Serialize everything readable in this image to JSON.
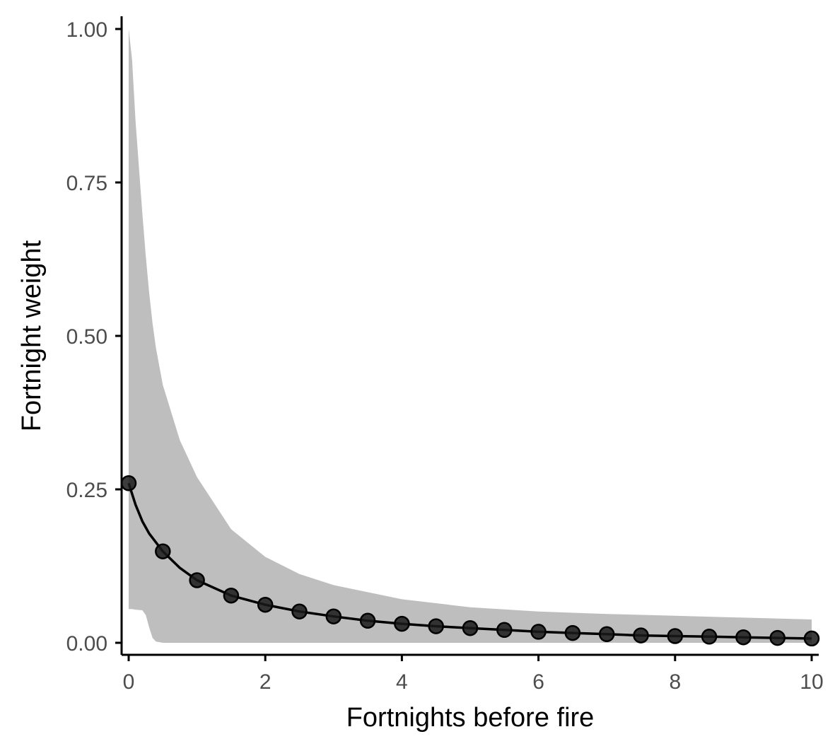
{
  "chart_data": {
    "type": "line",
    "title": "",
    "xlabel": "Fortnights before fire",
    "ylabel": "Fortnight weight",
    "xlim": [
      0,
      10
    ],
    "ylim": [
      0,
      1
    ],
    "x_ticks": [
      0,
      2,
      4,
      6,
      8,
      10
    ],
    "x_tick_labels": [
      "0",
      "2",
      "4",
      "6",
      "8",
      "10"
    ],
    "y_ticks": [
      0,
      0.25,
      0.5,
      0.75,
      1.0
    ],
    "y_tick_labels": [
      "0.00",
      "0.25",
      "0.50",
      "0.75",
      "1.00"
    ],
    "grid": false,
    "legend": "none",
    "series": [
      {
        "kind": "points",
        "x": [
          0,
          0.5,
          1,
          1.5,
          2,
          2.5,
          3,
          3.5,
          4,
          4.5,
          5,
          5.5,
          6,
          6.5,
          7,
          7.5,
          8,
          8.5,
          9,
          9.5,
          10
        ],
        "values": [
          0.26,
          0.149,
          0.102,
          0.077,
          0.062,
          0.051,
          0.043,
          0.036,
          0.031,
          0.027,
          0.024,
          0.021,
          0.018,
          0.016,
          0.014,
          0.012,
          0.011,
          0.01,
          0.009,
          0.008,
          0.007
        ]
      },
      {
        "kind": "fitted-line",
        "x": [
          0,
          0.1,
          0.2,
          0.3,
          0.5,
          0.75,
          1,
          1.5,
          2,
          2.5,
          3,
          3.5,
          4,
          4.5,
          5,
          5.5,
          6,
          6.5,
          7,
          7.5,
          8,
          8.5,
          9,
          9.5,
          10
        ],
        "values": [
          0.26,
          0.225,
          0.198,
          0.178,
          0.149,
          0.122,
          0.102,
          0.077,
          0.062,
          0.051,
          0.043,
          0.036,
          0.031,
          0.027,
          0.024,
          0.021,
          0.018,
          0.016,
          0.014,
          0.012,
          0.011,
          0.01,
          0.009,
          0.008,
          0.007
        ]
      },
      {
        "kind": "ribbon",
        "x": [
          0,
          0.05,
          0.1,
          0.2,
          0.25,
          0.3,
          0.35,
          0.4,
          0.5,
          0.75,
          1,
          1.5,
          2,
          2.5,
          3,
          4,
          5,
          6,
          7,
          8,
          9,
          10
        ],
        "upper": [
          1.0,
          0.95,
          0.85,
          0.7,
          0.63,
          0.57,
          0.52,
          0.48,
          0.42,
          0.33,
          0.27,
          0.185,
          0.14,
          0.112,
          0.094,
          0.071,
          0.058,
          0.051,
          0.047,
          0.044,
          0.041,
          0.038
        ],
        "lower": [
          0.055,
          0.055,
          0.054,
          0.053,
          0.045,
          0.025,
          0.008,
          0.002,
          0.0,
          0.0,
          0.0,
          0.0,
          0.0,
          0.0,
          0.0,
          0.0,
          0.0,
          0.0,
          0.0,
          0.0,
          0.0,
          0.0
        ]
      }
    ],
    "colors": {
      "ribbon": "#bebebe",
      "line": "#000000",
      "points": "#1a1a1a",
      "axis": "#000000",
      "tick_text": "#4d4d4d"
    }
  }
}
